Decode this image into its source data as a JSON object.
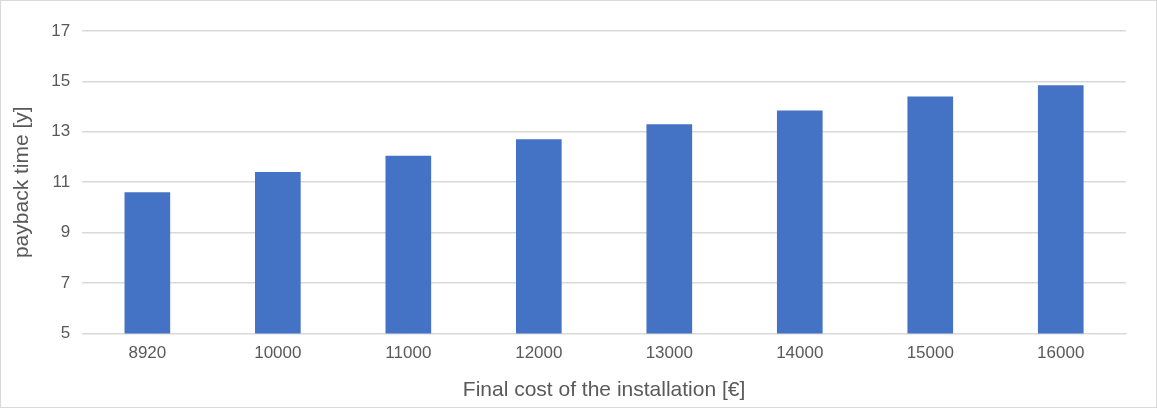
{
  "chart_data": {
    "type": "bar",
    "xlabel": "Final cost of the installation [€]",
    "ylabel": "payback time [y]",
    "categories": [
      "8920",
      "10000",
      "11000",
      "12000",
      "13000",
      "14000",
      "15000",
      "16000"
    ],
    "values": [
      10.6,
      11.4,
      12.05,
      12.7,
      13.3,
      13.85,
      14.4,
      14.85
    ],
    "color": "#4472c4",
    "ylim": [
      5,
      17
    ],
    "yticks": [
      5,
      7,
      9,
      11,
      13,
      15,
      17
    ],
    "grid": "y",
    "legend": false
  }
}
